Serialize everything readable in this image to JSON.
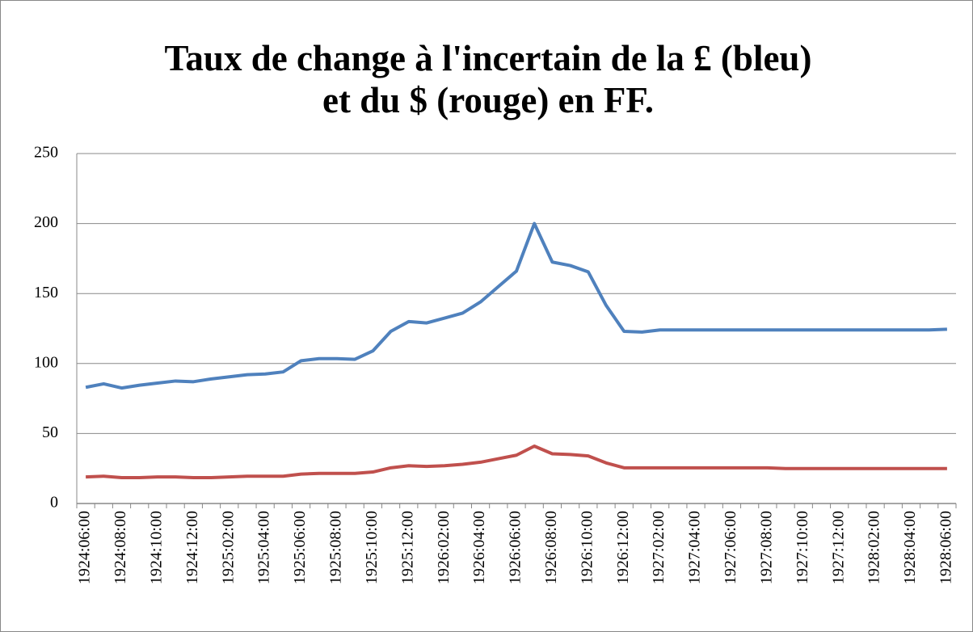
{
  "chart_data": {
    "type": "line",
    "title": [
      "Taux de change à l'incertain de la £ (bleu)",
      "et du $ (rouge) en FF."
    ],
    "categories": [
      "1924:06:00",
      null,
      "1924:08:00",
      null,
      "1924:10:00",
      null,
      "1924:12:00",
      null,
      "1925:02:00",
      null,
      "1925:04:00",
      null,
      "1925:06:00",
      null,
      "1925:08:00",
      null,
      "1925:10:00",
      null,
      "1925:12:00",
      null,
      "1926:02:00",
      null,
      "1926:04:00",
      null,
      "1926:06:00",
      null,
      "1926:08:00",
      null,
      "1926:10:00",
      null,
      "1926:12:00",
      null,
      "1927:02:00",
      null,
      "1927:04:00",
      null,
      "1927:06:00",
      null,
      "1927:08:00",
      null,
      "1927:10:00",
      null,
      "1927:12:00",
      null,
      "1928:02:00",
      null,
      "1928:04:00",
      null,
      "1928:06:00"
    ],
    "series": [
      {
        "color": "#4f81bd",
        "values": [
          83,
          85.5,
          82.5,
          84.5,
          86,
          87.5,
          87,
          89,
          90.5,
          92,
          92.5,
          94,
          102,
          103.5,
          103.5,
          103,
          109,
          123,
          130,
          129,
          132.5,
          136,
          144,
          155,
          166,
          200,
          172.5,
          170,
          165.5,
          141.5,
          123,
          122.5,
          124,
          124,
          124,
          124,
          124,
          124,
          124,
          124,
          124,
          124,
          124,
          124,
          124,
          124,
          124,
          124,
          124.5
        ]
      },
      {
        "color": "#c0504d",
        "values": [
          19,
          19.5,
          18.5,
          18.5,
          19,
          19,
          18.5,
          18.5,
          19,
          19.5,
          19.5,
          19.5,
          21,
          21.5,
          21.5,
          21.5,
          22.5,
          25.5,
          27,
          26.5,
          27,
          28,
          29.5,
          32,
          34.5,
          41,
          35.5,
          35,
          34,
          29,
          25.5,
          25.5,
          25.5,
          25.5,
          25.5,
          25.5,
          25.5,
          25.5,
          25.5,
          25,
          25,
          25,
          25,
          25,
          25,
          25,
          25,
          25,
          25
        ]
      }
    ],
    "ylim": [
      0,
      250
    ],
    "yticks": [
      0,
      50,
      100,
      150,
      200,
      250
    ],
    "grid": true
  }
}
